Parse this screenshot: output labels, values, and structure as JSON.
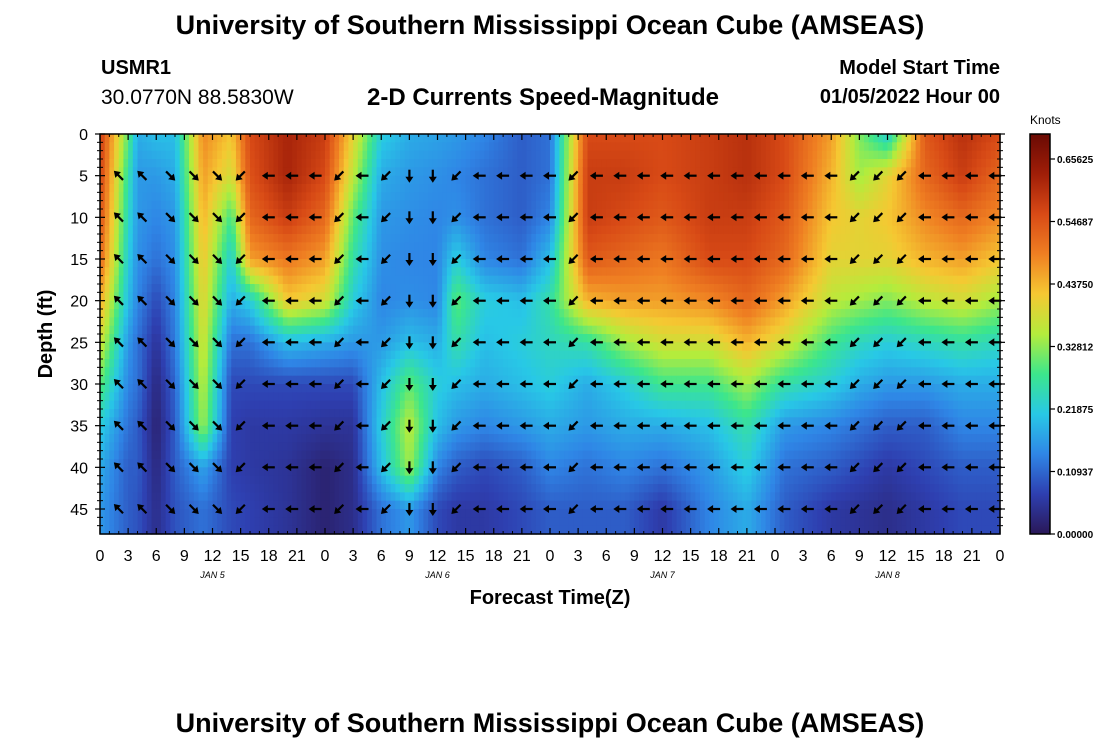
{
  "header": {
    "title": "University of Southern Mississippi Ocean Cube (AMSEAS)",
    "station_id": "USMR1",
    "station_coords": "30.0770N  88.5830W",
    "plot_title": "2-D Currents Speed-Magnitude",
    "model_start_label": "Model Start Time",
    "model_start_value": "01/05/2022 Hour 00"
  },
  "footer": {
    "title": "University of Southern Mississippi Ocean Cube (AMSEAS)"
  },
  "colors": {
    "scale": [
      "#2a1858",
      "#2e3fb0",
      "#2f86e6",
      "#28c8e6",
      "#3ce68c",
      "#b4ec3c",
      "#f5c832",
      "#ef7f22",
      "#d84a16",
      "#a01e08",
      "#6a0a04"
    ]
  },
  "chart_data": {
    "type": "heatmap",
    "title": "2-D Currents Speed-Magnitude",
    "xlabel": "Forecast Time(Z)",
    "ylabel": "Depth (ft)",
    "x_hours": [
      0,
      96
    ],
    "x_tick_labels": [
      "0",
      "3",
      "6",
      "9",
      "12",
      "15",
      "18",
      "21",
      "0",
      "3",
      "6",
      "9",
      "12",
      "15",
      "18",
      "21",
      "0",
      "3",
      "6",
      "9",
      "12",
      "15",
      "18",
      "21",
      "0",
      "3",
      "6",
      "9",
      "12",
      "15",
      "18",
      "21",
      "0"
    ],
    "day_labels": [
      {
        "label": "JAN 5",
        "hour": 12
      },
      {
        "label": "JAN 6",
        "hour": 36
      },
      {
        "label": "JAN 7",
        "hour": 60
      },
      {
        "label": "JAN 8",
        "hour": 84
      }
    ],
    "y_ticks": [
      0,
      5,
      10,
      15,
      20,
      25,
      30,
      35,
      40,
      45
    ],
    "ylim": [
      0,
      48
    ],
    "colorbar": {
      "label": "Knots",
      "min": 0,
      "max": 0.7,
      "tick_values": [
        0.0,
        0.10937,
        0.21875,
        0.32812,
        0.4375,
        0.54687,
        0.65625
      ],
      "tick_labels": [
        "0.00000",
        "0.10937",
        "0.21875",
        "0.32812",
        "0.43750",
        "0.54687",
        "0.65625"
      ]
    },
    "speed_keypoints": [
      {
        "hour": 0,
        "speeds": [
          0.58,
          0.57,
          0.55,
          0.52,
          0.45,
          0.38,
          0.3,
          0.22,
          0.18,
          0.16
        ]
      },
      {
        "hour": 3,
        "speeds": [
          0.3,
          0.26,
          0.24,
          0.22,
          0.2,
          0.16,
          0.14,
          0.12,
          0.1,
          0.1
        ]
      },
      {
        "hour": 4,
        "speeds": [
          0.18,
          0.16,
          0.16,
          0.15,
          0.14,
          0.12,
          0.12,
          0.1,
          0.1,
          0.09
        ]
      },
      {
        "hour": 6,
        "speeds": [
          0.2,
          0.16,
          0.14,
          0.12,
          0.08,
          0.05,
          0.03,
          0.02,
          0.03,
          0.04
        ]
      },
      {
        "hour": 8,
        "speeds": [
          0.2,
          0.18,
          0.16,
          0.15,
          0.14,
          0.13,
          0.11,
          0.1,
          0.1,
          0.09
        ]
      },
      {
        "hour": 11,
        "speeds": [
          0.48,
          0.46,
          0.44,
          0.42,
          0.4,
          0.38,
          0.36,
          0.34,
          0.17,
          0.12
        ]
      },
      {
        "hour": 14,
        "speeds": [
          0.42,
          0.38,
          0.28,
          0.22,
          0.18,
          0.12,
          0.08,
          0.07,
          0.07,
          0.08
        ]
      },
      {
        "hour": 16,
        "speeds": [
          0.56,
          0.55,
          0.52,
          0.46,
          0.22,
          0.12,
          0.08,
          0.06,
          0.06,
          0.07
        ]
      },
      {
        "hour": 20,
        "speeds": [
          0.62,
          0.62,
          0.58,
          0.5,
          0.42,
          0.2,
          0.08,
          0.06,
          0.05,
          0.05
        ]
      },
      {
        "hour": 24,
        "speeds": [
          0.58,
          0.56,
          0.52,
          0.46,
          0.38,
          0.18,
          0.08,
          0.05,
          0.02,
          0.02
        ]
      },
      {
        "hour": 27,
        "speeds": [
          0.4,
          0.36,
          0.3,
          0.26,
          0.22,
          0.16,
          0.08,
          0.05,
          0.04,
          0.04
        ]
      },
      {
        "hour": 30,
        "speeds": [
          0.22,
          0.18,
          0.16,
          0.15,
          0.14,
          0.16,
          0.2,
          0.22,
          0.2,
          0.12
        ]
      },
      {
        "hour": 33,
        "speeds": [
          0.18,
          0.16,
          0.15,
          0.14,
          0.15,
          0.2,
          0.3,
          0.36,
          0.34,
          0.16
        ]
      },
      {
        "hour": 36,
        "speeds": [
          0.17,
          0.15,
          0.14,
          0.14,
          0.14,
          0.18,
          0.22,
          0.2,
          0.14,
          0.08
        ]
      },
      {
        "hour": 38,
        "speeds": [
          0.16,
          0.14,
          0.15,
          0.22,
          0.3,
          0.26,
          0.2,
          0.16,
          0.1,
          0.06
        ]
      },
      {
        "hour": 41,
        "speeds": [
          0.14,
          0.12,
          0.12,
          0.14,
          0.22,
          0.2,
          0.18,
          0.14,
          0.08,
          0.06
        ]
      },
      {
        "hour": 45,
        "speeds": [
          0.1,
          0.1,
          0.1,
          0.12,
          0.2,
          0.22,
          0.2,
          0.16,
          0.1,
          0.08
        ]
      },
      {
        "hour": 48,
        "speeds": [
          0.12,
          0.12,
          0.14,
          0.2,
          0.26,
          0.24,
          0.22,
          0.18,
          0.14,
          0.1
        ]
      },
      {
        "hour": 52,
        "speeds": [
          0.56,
          0.58,
          0.58,
          0.54,
          0.44,
          0.26,
          0.18,
          0.16,
          0.12,
          0.1
        ]
      },
      {
        "hour": 56,
        "speeds": [
          0.56,
          0.58,
          0.56,
          0.52,
          0.46,
          0.34,
          0.22,
          0.18,
          0.14,
          0.1
        ]
      },
      {
        "hour": 60,
        "speeds": [
          0.56,
          0.56,
          0.54,
          0.5,
          0.46,
          0.38,
          0.28,
          0.18,
          0.12,
          0.06
        ]
      },
      {
        "hour": 65,
        "speeds": [
          0.58,
          0.58,
          0.58,
          0.56,
          0.48,
          0.38,
          0.28,
          0.2,
          0.16,
          0.14
        ]
      },
      {
        "hour": 69,
        "speeds": [
          0.6,
          0.6,
          0.58,
          0.56,
          0.52,
          0.44,
          0.34,
          0.26,
          0.22,
          0.18
        ]
      },
      {
        "hour": 73,
        "speeds": [
          0.56,
          0.56,
          0.54,
          0.52,
          0.46,
          0.38,
          0.26,
          0.16,
          0.12,
          0.1
        ]
      },
      {
        "hour": 78,
        "speeds": [
          0.46,
          0.44,
          0.42,
          0.4,
          0.36,
          0.28,
          0.22,
          0.14,
          0.1,
          0.06
        ]
      },
      {
        "hour": 81,
        "speeds": [
          0.32,
          0.34,
          0.4,
          0.4,
          0.34,
          0.24,
          0.18,
          0.12,
          0.08,
          0.05
        ]
      },
      {
        "hour": 84,
        "speeds": [
          0.22,
          0.4,
          0.42,
          0.4,
          0.32,
          0.22,
          0.16,
          0.1,
          0.06,
          0.04
        ]
      },
      {
        "hour": 88,
        "speeds": [
          0.54,
          0.52,
          0.48,
          0.44,
          0.36,
          0.24,
          0.16,
          0.1,
          0.08,
          0.06
        ]
      },
      {
        "hour": 92,
        "speeds": [
          0.6,
          0.58,
          0.52,
          0.46,
          0.38,
          0.26,
          0.18,
          0.14,
          0.1,
          0.08
        ]
      },
      {
        "hour": 96,
        "speeds": [
          0.56,
          0.52,
          0.48,
          0.42,
          0.34,
          0.24,
          0.18,
          0.14,
          0.1,
          0.08
        ]
      }
    ],
    "vector_time_hours": [
      2,
      4.5,
      7.5,
      10,
      12.5,
      15,
      18,
      20.5,
      23,
      25.5,
      28,
      30.5,
      33,
      35.5,
      38,
      40.5,
      43,
      45.5,
      48,
      50.5,
      53,
      55.5,
      58,
      60.5,
      63,
      65.5,
      68,
      70.5,
      73,
      75.5,
      78,
      80.5,
      83,
      85.5,
      88,
      90.5,
      93,
      95.5
    ],
    "vector_depths_ft": [
      5,
      10,
      15,
      20,
      25,
      30,
      35,
      40,
      45
    ],
    "vector_direction_by_column": [
      "NW",
      "NW",
      "SE",
      "SE",
      "SE",
      "SW",
      "W",
      "W",
      "W",
      "SW",
      "W",
      "SW",
      "S",
      "S",
      "SW",
      "W",
      "W",
      "W",
      "W",
      "SW",
      "W",
      "W",
      "W",
      "W",
      "W",
      "W",
      "W",
      "W",
      "W",
      "W",
      "W",
      "SW",
      "SW",
      "SW",
      "W",
      "W",
      "W",
      "W"
    ]
  }
}
